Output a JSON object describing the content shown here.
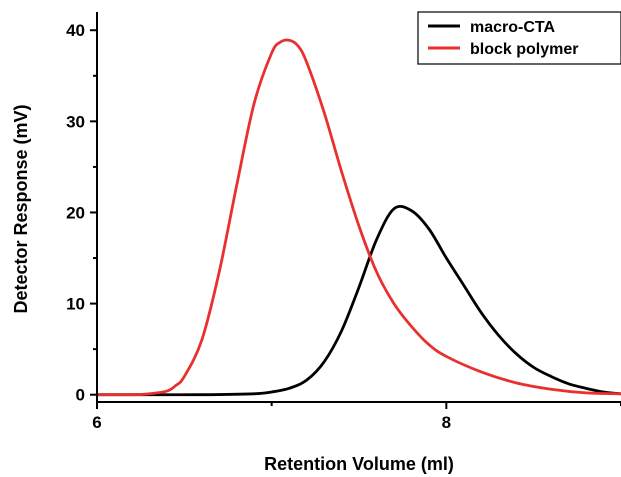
{
  "chart_data": {
    "type": "line",
    "xlabel": "Retention Volume (ml)",
    "ylabel": "Detector Response (mV)",
    "xlim": [
      6.0,
      9.0
    ],
    "ylim": [
      -0.8,
      42.0
    ],
    "xticks_major": [
      6,
      8
    ],
    "xticks_minor": [
      7,
      9
    ],
    "yticks": [
      0,
      10,
      20,
      30,
      40
    ],
    "yticks_minor": [
      5,
      15,
      25,
      35
    ],
    "grid": false,
    "legend_position": "top-right",
    "series": [
      {
        "name": "macro-CTA",
        "color": "#000000",
        "x": [
          6.0,
          6.3,
          6.6,
          6.9,
          7.0,
          7.1,
          7.2,
          7.3,
          7.4,
          7.5,
          7.6,
          7.7,
          7.8,
          7.9,
          8.0,
          8.1,
          8.2,
          8.3,
          8.4,
          8.5,
          8.6,
          8.7,
          8.8,
          8.9,
          9.0
        ],
        "values": [
          0,
          0,
          0,
          0.1,
          0.3,
          0.7,
          1.6,
          3.6,
          7.0,
          11.8,
          17.0,
          20.4,
          20.2,
          18.2,
          15.0,
          12.0,
          9.0,
          6.5,
          4.5,
          3.0,
          2.0,
          1.2,
          0.7,
          0.3,
          0.1
        ]
      },
      {
        "name": "block polymer",
        "color": "#e8312f",
        "x": [
          6.0,
          6.2,
          6.3,
          6.4,
          6.45,
          6.5,
          6.6,
          6.7,
          6.8,
          6.9,
          7.0,
          7.05,
          7.1,
          7.15,
          7.2,
          7.3,
          7.4,
          7.5,
          7.6,
          7.7,
          7.8,
          7.9,
          8.0,
          8.2,
          8.4,
          8.6,
          8.8,
          9.0
        ],
        "values": [
          0,
          0,
          0.1,
          0.4,
          1.0,
          2.0,
          6.0,
          13.5,
          23.0,
          32.0,
          37.5,
          38.7,
          38.9,
          38.3,
          36.5,
          31.0,
          24.5,
          18.5,
          13.5,
          10.0,
          7.5,
          5.5,
          4.2,
          2.5,
          1.3,
          0.6,
          0.2,
          0.1
        ]
      }
    ]
  }
}
